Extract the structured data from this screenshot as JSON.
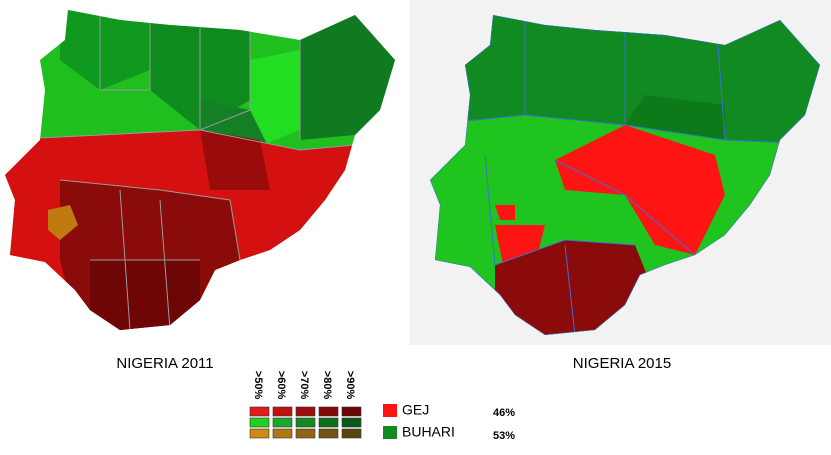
{
  "maps": [
    {
      "title": "NIGERIA 2011"
    },
    {
      "title": "NIGERIA 2015"
    }
  ],
  "legend": {
    "thresholds": [
      ">50%",
      ">60%",
      ">70%",
      ">80%",
      ">90%"
    ],
    "candidates": [
      {
        "name": "GEJ",
        "share": "46%"
      },
      {
        "name": "BUHARI",
        "share": "53%"
      }
    ]
  }
}
